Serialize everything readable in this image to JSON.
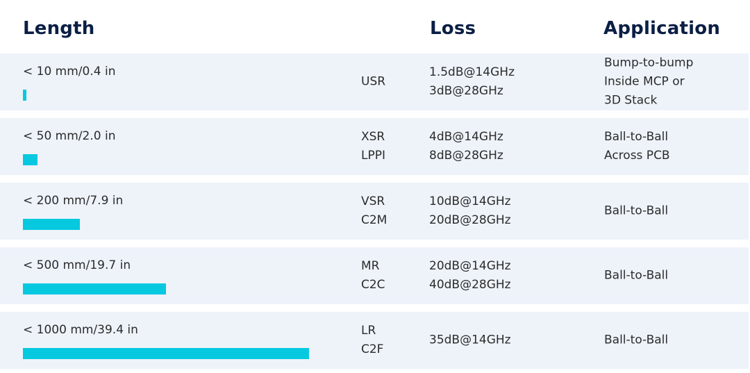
{
  "headers": {
    "length": "Length",
    "loss": "Loss",
    "application": "Application"
  },
  "colors": {
    "header_text": "#0b1f45",
    "row_background": "#eef3fa",
    "bar": "#06c9e0"
  },
  "rows": [
    {
      "length_label": "< 10 mm/0.4 in",
      "length_mm": 10,
      "codes": [
        "USR"
      ],
      "loss": [
        "1.5dB@14GHz",
        "3dB@28GHz"
      ],
      "application": [
        "Bump-to-bump",
        "Inside MCP or",
        "3D Stack"
      ]
    },
    {
      "length_label": "< 50 mm/2.0 in",
      "length_mm": 50,
      "codes": [
        "XSR",
        "LPPI"
      ],
      "loss": [
        "4dB@14GHz",
        "8dB@28GHz"
      ],
      "application": [
        "Ball-to-Ball",
        "Across PCB"
      ]
    },
    {
      "length_label": "< 200 mm/7.9 in",
      "length_mm": 200,
      "codes": [
        "VSR",
        "C2M"
      ],
      "loss": [
        "10dB@14GHz",
        "20dB@28GHz"
      ],
      "application": [
        "Ball-to-Ball"
      ]
    },
    {
      "length_label": "< 500 mm/19.7 in",
      "length_mm": 500,
      "codes": [
        "MR",
        "C2C"
      ],
      "loss": [
        "20dB@14GHz",
        "40dB@28GHz"
      ],
      "application": [
        "Ball-to-Ball"
      ]
    },
    {
      "length_label": "< 1000 mm/39.4 in",
      "length_mm": 1000,
      "codes": [
        "LR",
        "C2F"
      ],
      "loss": [
        "35dB@14GHz"
      ],
      "application": [
        "Ball-to-Ball"
      ]
    }
  ]
}
